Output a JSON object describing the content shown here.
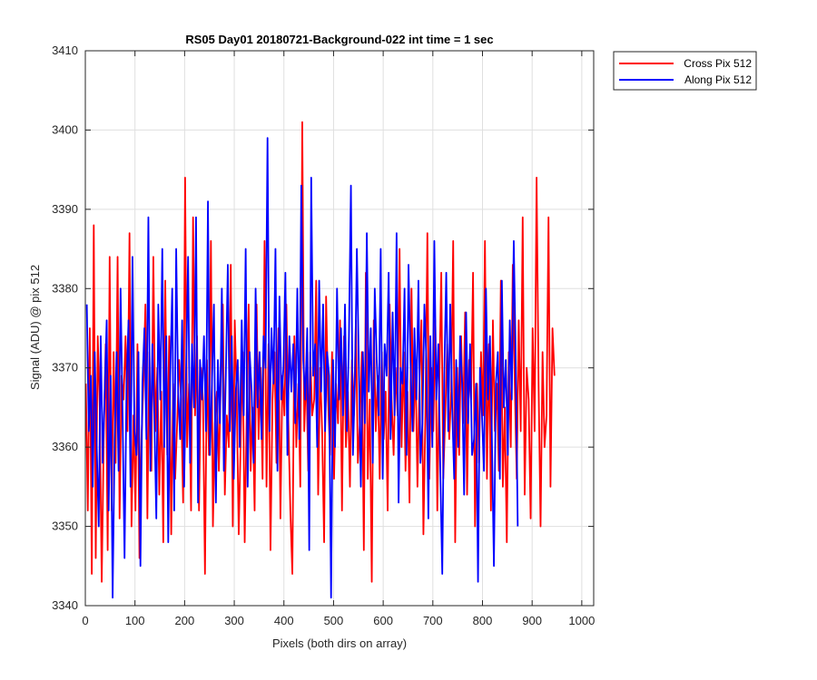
{
  "chart_data": {
    "type": "line",
    "title": "RS05 Day01 20180721-Background-022 int time = 1 sec",
    "xlabel": "Pixels (both dirs on array)",
    "ylabel": "Signal (ADU) @ pix 512",
    "xlim": [
      0,
      1024
    ],
    "ylim": [
      3340,
      3410
    ],
    "xticks": [
      0,
      100,
      200,
      300,
      400,
      500,
      600,
      700,
      800,
      900,
      1000
    ],
    "yticks": [
      3340,
      3350,
      3360,
      3370,
      3380,
      3390,
      3400,
      3410
    ],
    "grid": true,
    "legend_position": "outside-top-right",
    "series": [
      {
        "name": "Cross Pix 512",
        "color": "#ff0000",
        "x_start": 1,
        "x_step": 4,
        "values": [
          3368,
          3352,
          3375,
          3344,
          3388,
          3346,
          3374,
          3365,
          3343,
          3361,
          3373,
          3347,
          3384,
          3352,
          3372,
          3358,
          3384,
          3351,
          3369,
          3366,
          3374,
          3362,
          3387,
          3350,
          3364,
          3352,
          3373,
          3346,
          3361,
          3368,
          3378,
          3351,
          3372,
          3357,
          3384,
          3362,
          3370,
          3354,
          3367,
          3348,
          3381,
          3359,
          3374,
          3349,
          3368,
          3356,
          3363,
          3371,
          3366,
          3353,
          3394,
          3360,
          3368,
          3352,
          3389,
          3364,
          3374,
          3352,
          3370,
          3366,
          3344,
          3371,
          3359,
          3386,
          3350,
          3363,
          3367,
          3357,
          3369,
          3378,
          3354,
          3364,
          3360,
          3383,
          3350,
          3376,
          3366,
          3349,
          3361,
          3372,
          3348,
          3364,
          3378,
          3357,
          3365,
          3352,
          3378,
          3361,
          3370,
          3356,
          3386,
          3355,
          3373,
          3347,
          3366,
          3372,
          3358,
          3375,
          3351,
          3369,
          3364,
          3378,
          3363,
          3352,
          3344,
          3374,
          3360,
          3368,
          3355,
          3401,
          3362,
          3370,
          3357,
          3372,
          3364,
          3366,
          3381,
          3354,
          3370,
          3362,
          3348,
          3379,
          3366,
          3359,
          3372,
          3356,
          3368,
          3363,
          3376,
          3352,
          3374,
          3360,
          3367,
          3355,
          3371,
          3364,
          3376,
          3358,
          3363,
          3372,
          3347,
          3382,
          3356,
          3366,
          3343,
          3376,
          3362,
          3369,
          3356,
          3372,
          3361,
          3367,
          3352,
          3378,
          3366,
          3359,
          3370,
          3364,
          3385,
          3360,
          3372,
          3357,
          3367,
          3353,
          3380,
          3362,
          3371,
          3355,
          3368,
          3376,
          3349,
          3364,
          3387,
          3356,
          3370,
          3362,
          3376,
          3352,
          3368,
          3382,
          3356,
          3364,
          3373,
          3361,
          3367,
          3386,
          3348,
          3370,
          3359,
          3374,
          3363,
          3377,
          3354,
          3371,
          3366,
          3382,
          3350,
          3368,
          3358,
          3372,
          3364,
          3386,
          3356,
          3373,
          3352,
          3376,
          3362,
          3368,
          3357,
          3381,
          3355,
          3365,
          3348,
          3372,
          3360,
          3383,
          3368,
          3356,
          3376,
          3362,
          3389,
          3354,
          3370,
          3366,
          3351,
          3375,
          3362,
          3394,
          3368,
          3350,
          3372,
          3360,
          3364,
          3389,
          3355,
          3375,
          3369
        ]
      },
      {
        "name": "Along Pix 512",
        "color": "#0000ff",
        "x_start": 3,
        "x_step": 4,
        "values": [
          3378,
          3362,
          3369,
          3355,
          3372,
          3360,
          3350,
          3374,
          3358,
          3367,
          3376,
          3352,
          3369,
          3341,
          3361,
          3372,
          3357,
          3380,
          3364,
          3346,
          3368,
          3376,
          3355,
          3384,
          3362,
          3359,
          3372,
          3345,
          3368,
          3375,
          3361,
          3389,
          3357,
          3373,
          3364,
          3351,
          3378,
          3366,
          3385,
          3360,
          3374,
          3348,
          3369,
          3380,
          3352,
          3385,
          3367,
          3361,
          3376,
          3355,
          3370,
          3384,
          3358,
          3373,
          3365,
          3389,
          3353,
          3371,
          3366,
          3374,
          3362,
          3391,
          3359,
          3368,
          3378,
          3353,
          3371,
          3363,
          3380,
          3357,
          3369,
          3383,
          3362,
          3374,
          3356,
          3367,
          3371,
          3360,
          3376,
          3364,
          3385,
          3355,
          3372,
          3367,
          3358,
          3380,
          3365,
          3372,
          3361,
          3374,
          3370,
          3399,
          3362,
          3375,
          3368,
          3385,
          3357,
          3379,
          3366,
          3370,
          3382,
          3359,
          3374,
          3367,
          3373,
          3363,
          3380,
          3361,
          3393,
          3371,
          3366,
          3375,
          3347,
          3394,
          3369,
          3373,
          3360,
          3381,
          3367,
          3378,
          3362,
          3372,
          3369,
          3341,
          3371,
          3360,
          3380,
          3366,
          3375,
          3364,
          3378,
          3362,
          3374,
          3393,
          3359,
          3368,
          3385,
          3370,
          3355,
          3372,
          3363,
          3387,
          3367,
          3375,
          3358,
          3380,
          3371,
          3364,
          3385,
          3356,
          3373,
          3369,
          3382,
          3361,
          3377,
          3364,
          3387,
          3353,
          3370,
          3368,
          3380,
          3359,
          3383,
          3371,
          3362,
          3375,
          3366,
          3381,
          3358,
          3363,
          3378,
          3371,
          3351,
          3374,
          3360,
          3386,
          3366,
          3373,
          3357,
          3344,
          3369,
          3382,
          3362,
          3378,
          3365,
          3356,
          3371,
          3360,
          3374,
          3368,
          3354,
          3377,
          3363,
          3373,
          3359,
          3361,
          3368,
          3343,
          3370,
          3364,
          3357,
          3380,
          3366,
          3374,
          3361,
          3345,
          3368,
          3372,
          3356,
          3381,
          3365,
          3371,
          3359,
          3376,
          3366,
          3386,
          3371,
          3350
        ]
      }
    ]
  }
}
